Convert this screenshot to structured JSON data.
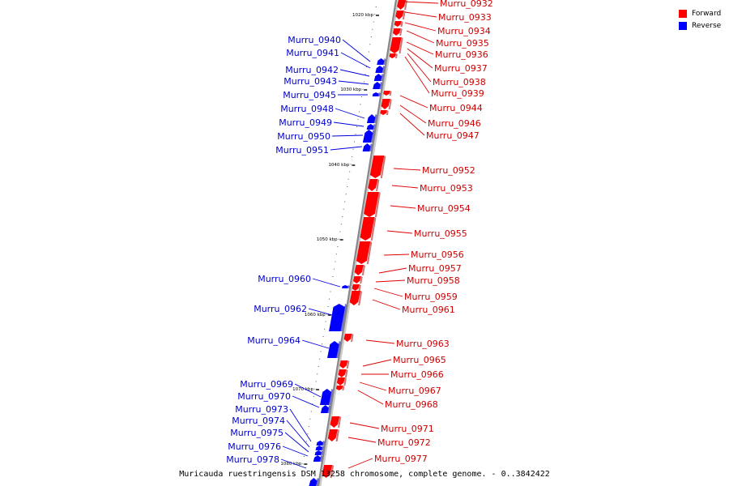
{
  "caption": "Muricauda ruestringensis DSM 13258 chromosome, complete genome. - 0..3842422",
  "legend": [
    {
      "label": "Forward",
      "color": "#ff0000"
    },
    {
      "label": "Reverse",
      "color": "#0000ff"
    }
  ],
  "colors": {
    "forward": "#ff0000",
    "reverse": "#0000ff",
    "axis": "#888888",
    "label_forward": "#cc0000",
    "label_reverse": "#0000cc"
  },
  "ticks": [
    "1020 kbp",
    "1030 kbp",
    "1040 kbp",
    "1050 kbp",
    "1060 kbp",
    "1070 kbp",
    "1080 kbp"
  ],
  "forward_genes": [
    "Murru_0932",
    "Murru_0933",
    "Murru_0934",
    "Murru_0935",
    "Murru_0936",
    "Murru_0937",
    "Murru_0938",
    "Murru_0939",
    "Murru_0944",
    "Murru_0946",
    "Murru_0947",
    "Murru_0952",
    "Murru_0953",
    "Murru_0954",
    "Murru_0955",
    "Murru_0956",
    "Murru_0957",
    "Murru_0958",
    "Murru_0959",
    "Murru_0961",
    "Murru_0963",
    "Murru_0965",
    "Murru_0966",
    "Murru_0967",
    "Murru_0968",
    "Murru_0971",
    "Murru_0972",
    "Murru_0977"
  ],
  "reverse_genes": [
    "Murru_0940",
    "Murru_0941",
    "Murru_0942",
    "Murru_0943",
    "Murru_0945",
    "Murru_0948",
    "Murru_0949",
    "Murru_0950",
    "Murru_0951",
    "Murru_0960",
    "Murru_0962",
    "Murru_0964",
    "Murru_0969",
    "Murru_0970",
    "Murru_0973",
    "Murru_0974",
    "Murru_0975",
    "Murru_0976",
    "Murru_0978"
  ]
}
